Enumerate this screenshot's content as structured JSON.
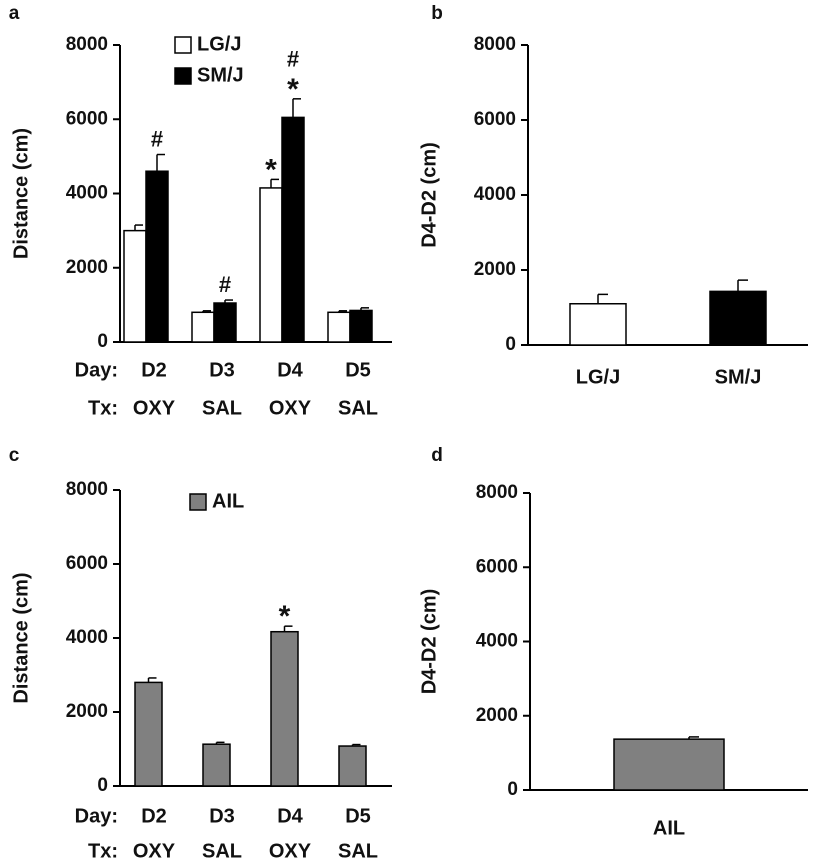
{
  "colors": {
    "lgj": "#ffffff",
    "smj": "#000000",
    "ail": "#808080",
    "axis": "#000000"
  },
  "chart_data": [
    {
      "panel": "a",
      "type": "bar",
      "categories": [
        "D2",
        "D3",
        "D4",
        "D5"
      ],
      "category_rows": [
        {
          "label": "Day:",
          "values": [
            "D2",
            "D3",
            "D4",
            "D5"
          ]
        },
        {
          "label": "Tx:",
          "values": [
            "OXY",
            "SAL",
            "OXY",
            "SAL"
          ]
        }
      ],
      "series": [
        {
          "name": "LG/J",
          "values": [
            3000,
            800,
            4150,
            800
          ],
          "errors": [
            150,
            40,
            230,
            40
          ],
          "fill": "#ffffff"
        },
        {
          "name": "SM/J",
          "values": [
            4600,
            1050,
            6050,
            850
          ],
          "errors": [
            450,
            80,
            500,
            70
          ],
          "fill": "#000000"
        }
      ],
      "annotations": [
        {
          "category": "D2",
          "series": "SM/J",
          "marks": [
            "#"
          ]
        },
        {
          "category": "D3",
          "series": "SM/J",
          "marks": [
            "#"
          ]
        },
        {
          "category": "D4",
          "series": "LG/J",
          "marks": [
            "*"
          ]
        },
        {
          "category": "D4",
          "series": "SM/J",
          "marks": [
            "*",
            "#"
          ]
        }
      ],
      "ylabel": "Distance (cm)",
      "ylim": [
        0,
        8000
      ],
      "yticks": [
        "0",
        "2000",
        "4000",
        "6000",
        "8000"
      ],
      "legend": "top-center",
      "grid": false
    },
    {
      "panel": "b",
      "type": "bar",
      "categories": [
        "LG/J",
        "SM/J"
      ],
      "values": [
        1100,
        1430
      ],
      "errors": [
        250,
        300
      ],
      "fills": [
        "#ffffff",
        "#000000"
      ],
      "ylabel": "D4-D2 (cm)",
      "ylim": [
        0,
        8000
      ],
      "yticks": [
        "0",
        "2000",
        "4000",
        "6000",
        "8000"
      ],
      "grid": false
    },
    {
      "panel": "c",
      "type": "bar",
      "categories": [
        "D2",
        "D3",
        "D4",
        "D5"
      ],
      "category_rows": [
        {
          "label": "Day:",
          "values": [
            "D2",
            "D3",
            "D4",
            "D5"
          ]
        },
        {
          "label": "Tx:",
          "values": [
            "OXY",
            "SAL",
            "OXY",
            "SAL"
          ]
        }
      ],
      "series": [
        {
          "name": "AIL",
          "values": [
            2800,
            1130,
            4170,
            1080
          ],
          "errors": [
            120,
            50,
            150,
            40
          ],
          "fill": "#808080"
        }
      ],
      "annotations": [
        {
          "category": "D4",
          "series": "AIL",
          "marks": [
            "*"
          ]
        }
      ],
      "ylabel": "Distance (cm)",
      "ylim": [
        0,
        8000
      ],
      "yticks": [
        "0",
        "2000",
        "4000",
        "6000",
        "8000"
      ],
      "legend": "top-center",
      "grid": false
    },
    {
      "panel": "d",
      "type": "bar",
      "categories": [
        "AIL"
      ],
      "values": [
        1370
      ],
      "errors": [
        60
      ],
      "fills": [
        "#808080"
      ],
      "ylabel": "D4-D2 (cm)",
      "ylim": [
        0,
        8000
      ],
      "yticks": [
        "0",
        "2000",
        "4000",
        "6000",
        "8000"
      ],
      "grid": false
    }
  ]
}
